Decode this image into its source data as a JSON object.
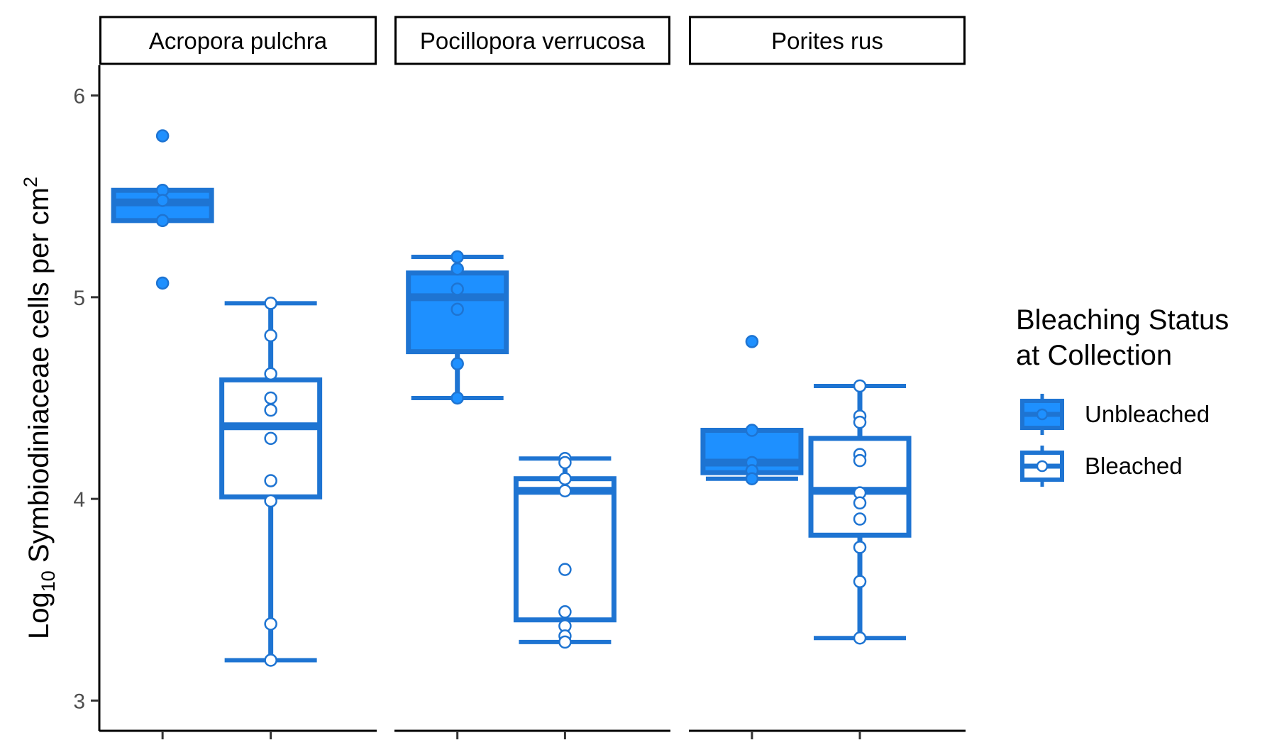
{
  "chart_data": {
    "type": "boxplot",
    "ylabel": {
      "prefix": "Log",
      "subscript": "10",
      "main": " Symbiodiniaceae cells per cm",
      "superscript": "2"
    },
    "ylim": [
      2.85,
      6.15
    ],
    "yticks": [
      3,
      4,
      5,
      6
    ],
    "panels": [
      "Acropora pulchra",
      "Pocillopora verrucosa",
      "Porites rus"
    ],
    "legend": {
      "title_lines": [
        "Bleaching Status",
        "at Collection"
      ],
      "entries": [
        "Unbleached",
        "Bleached"
      ],
      "position": "right"
    },
    "series": [
      {
        "name": "Unbleached",
        "fill": "#1E90FF",
        "stroke": "#1E74D2",
        "boxes": [
          {
            "q1": 5.38,
            "median": 5.47,
            "q3": 5.53,
            "whisker_low": 5.38,
            "whisker_high": 5.53,
            "points": [
              5.8,
              5.53,
              5.48,
              5.38,
              5.07
            ]
          },
          {
            "q1": 4.73,
            "median": 5.0,
            "q3": 5.12,
            "whisker_low": 4.5,
            "whisker_high": 5.2,
            "points": [
              5.2,
              5.14,
              5.04,
              4.94,
              4.67,
              4.5
            ]
          },
          {
            "q1": 4.13,
            "median": 4.18,
            "q3": 4.34,
            "whisker_low": 4.1,
            "whisker_high": 4.34,
            "points": [
              4.78,
              4.34,
              4.18,
              4.14,
              4.1
            ]
          }
        ]
      },
      {
        "name": "Bleached",
        "fill": "#FFFFFF",
        "stroke": "#1E74D2",
        "boxes": [
          {
            "q1": 4.01,
            "median": 4.36,
            "q3": 4.59,
            "whisker_low": 3.2,
            "whisker_high": 4.97,
            "points": [
              4.97,
              4.81,
              4.62,
              4.5,
              4.44,
              4.3,
              4.09,
              3.99,
              3.38,
              3.2
            ]
          },
          {
            "q1": 3.4,
            "median": 4.04,
            "q3": 4.1,
            "whisker_low": 3.29,
            "whisker_high": 4.2,
            "points": [
              4.2,
              4.18,
              4.1,
              4.04,
              3.65,
              3.44,
              3.37,
              3.32,
              3.29
            ]
          },
          {
            "q1": 3.82,
            "median": 4.04,
            "q3": 4.3,
            "whisker_low": 3.31,
            "whisker_high": 4.56,
            "points": [
              4.56,
              4.41,
              4.38,
              4.22,
              4.19,
              4.03,
              3.98,
              3.9,
              3.76,
              3.59,
              3.31
            ]
          }
        ]
      }
    ]
  }
}
